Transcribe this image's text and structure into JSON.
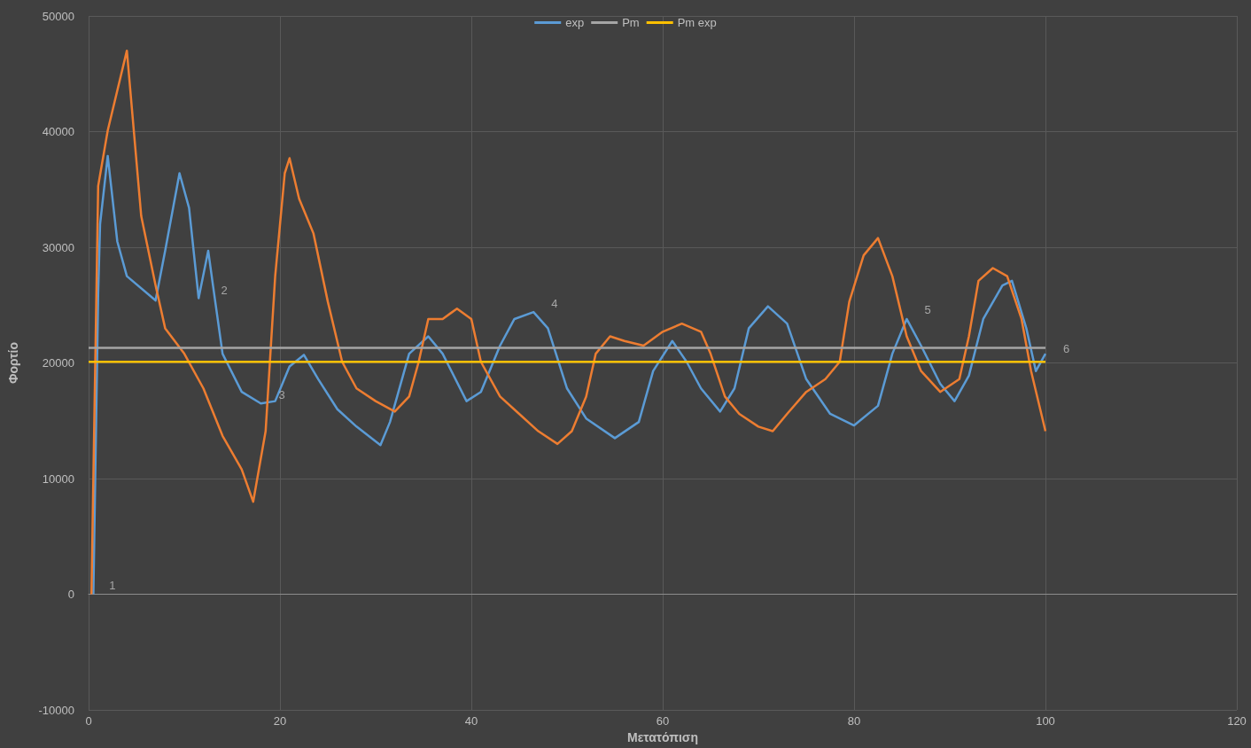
{
  "chart_data": {
    "type": "line",
    "xlabel": "Μετατόπιση",
    "ylabel": "Φορτίο",
    "xlim": [
      0,
      120
    ],
    "xticks": [
      0,
      20,
      40,
      60,
      80,
      100,
      120
    ],
    "ylim": [
      -10000,
      50000
    ],
    "yticks": [
      -10000,
      0,
      10000,
      20000,
      30000,
      40000,
      50000
    ],
    "grid": true,
    "legend": "top",
    "marker": "none",
    "line_style": "solid",
    "series": [
      {
        "name": "exp",
        "color": "#5b9bd5",
        "x": [
          0.5,
          1,
          1.2,
          2,
          3,
          4,
          7,
          8,
          9.5,
          10.5,
          11.5,
          12.5,
          13,
          14,
          16,
          18,
          19.5,
          21,
          22.5,
          24,
          26,
          28,
          30.5,
          31.5,
          33.5,
          35.5,
          37,
          39.5,
          41,
          43,
          44.5,
          46.5,
          48,
          50,
          52,
          55,
          57.5,
          59,
          61,
          62.5,
          64,
          66,
          67.5,
          69,
          71,
          73,
          75,
          77.5,
          80,
          82.5,
          84,
          85.5,
          87,
          89,
          90.5,
          92,
          93.5,
          95.5,
          96.5,
          98,
          99,
          100
        ],
        "values": [
          0,
          26000,
          32000,
          37900,
          30500,
          27500,
          25400,
          29700,
          36400,
          33400,
          25600,
          29700,
          26700,
          20800,
          17500,
          16500,
          16700,
          19700,
          20700,
          18600,
          16000,
          14500,
          12900,
          14900,
          20800,
          22300,
          20800,
          16700,
          17500,
          21500,
          23800,
          24400,
          23000,
          17800,
          15200,
          13500,
          14900,
          19300,
          21900,
          20100,
          17800,
          15800,
          17800,
          23000,
          24900,
          23400,
          18600,
          15600,
          14600,
          16300,
          20800,
          23800,
          21500,
          18200,
          16700,
          18900,
          23800,
          26700,
          27100,
          23000,
          19300,
          20800
        ]
      },
      {
        "color": "#ed7d31",
        "x": [
          0.3,
          1,
          2,
          4,
          5.5,
          7,
          8,
          10,
          12,
          14,
          16,
          17.2,
          18.5,
          19.5,
          20.5,
          21,
          22,
          23.5,
          25,
          26.5,
          28,
          30,
          32,
          33.5,
          34.5,
          35.5,
          37,
          38.5,
          40,
          41,
          43,
          45,
          47,
          49,
          50.5,
          52,
          53,
          54.5,
          56,
          58,
          60,
          62,
          64,
          65,
          66.5,
          68,
          70,
          71.5,
          73,
          75,
          77,
          78.5,
          79.5,
          81,
          82.5,
          84,
          85.5,
          87,
          89,
          91,
          92,
          93,
          94.5,
          96,
          97.5,
          98.5,
          100
        ],
        "values": [
          0,
          35300,
          40100,
          47000,
          32700,
          26700,
          23000,
          20800,
          17800,
          13700,
          10800,
          8000,
          14100,
          27500,
          36400,
          37700,
          34200,
          31200,
          25300,
          20100,
          17800,
          16700,
          15800,
          17100,
          20100,
          23800,
          23800,
          24700,
          23800,
          20100,
          17100,
          15600,
          14100,
          13000,
          14100,
          17100,
          20800,
          22300,
          21900,
          21500,
          22700,
          23400,
          22700,
          20800,
          17100,
          15600,
          14500,
          14100,
          15600,
          17500,
          18600,
          20100,
          25300,
          29300,
          30800,
          27500,
          22300,
          19300,
          17500,
          18600,
          22300,
          27100,
          28200,
          27500,
          23800,
          19300,
          14100
        ]
      },
      {
        "name": "Pm",
        "color": "#a5a5a5",
        "x": [
          0,
          100
        ],
        "values": [
          21300,
          21300
        ]
      },
      {
        "name": "Pm exp",
        "color": "#ffc000",
        "x": [
          0,
          100
        ],
        "values": [
          20100,
          20100
        ]
      }
    ],
    "annotations": [
      {
        "text": "1",
        "x": 0.3,
        "y": 0
      },
      {
        "text": "2",
        "x": 12,
        "y": 25500
      },
      {
        "text": "3",
        "x": 18,
        "y": 16500
      },
      {
        "text": "4",
        "x": 46.5,
        "y": 24400
      },
      {
        "text": "5",
        "x": 85.5,
        "y": 23800
      },
      {
        "text": "6",
        "x": 100,
        "y": 20500
      }
    ]
  }
}
